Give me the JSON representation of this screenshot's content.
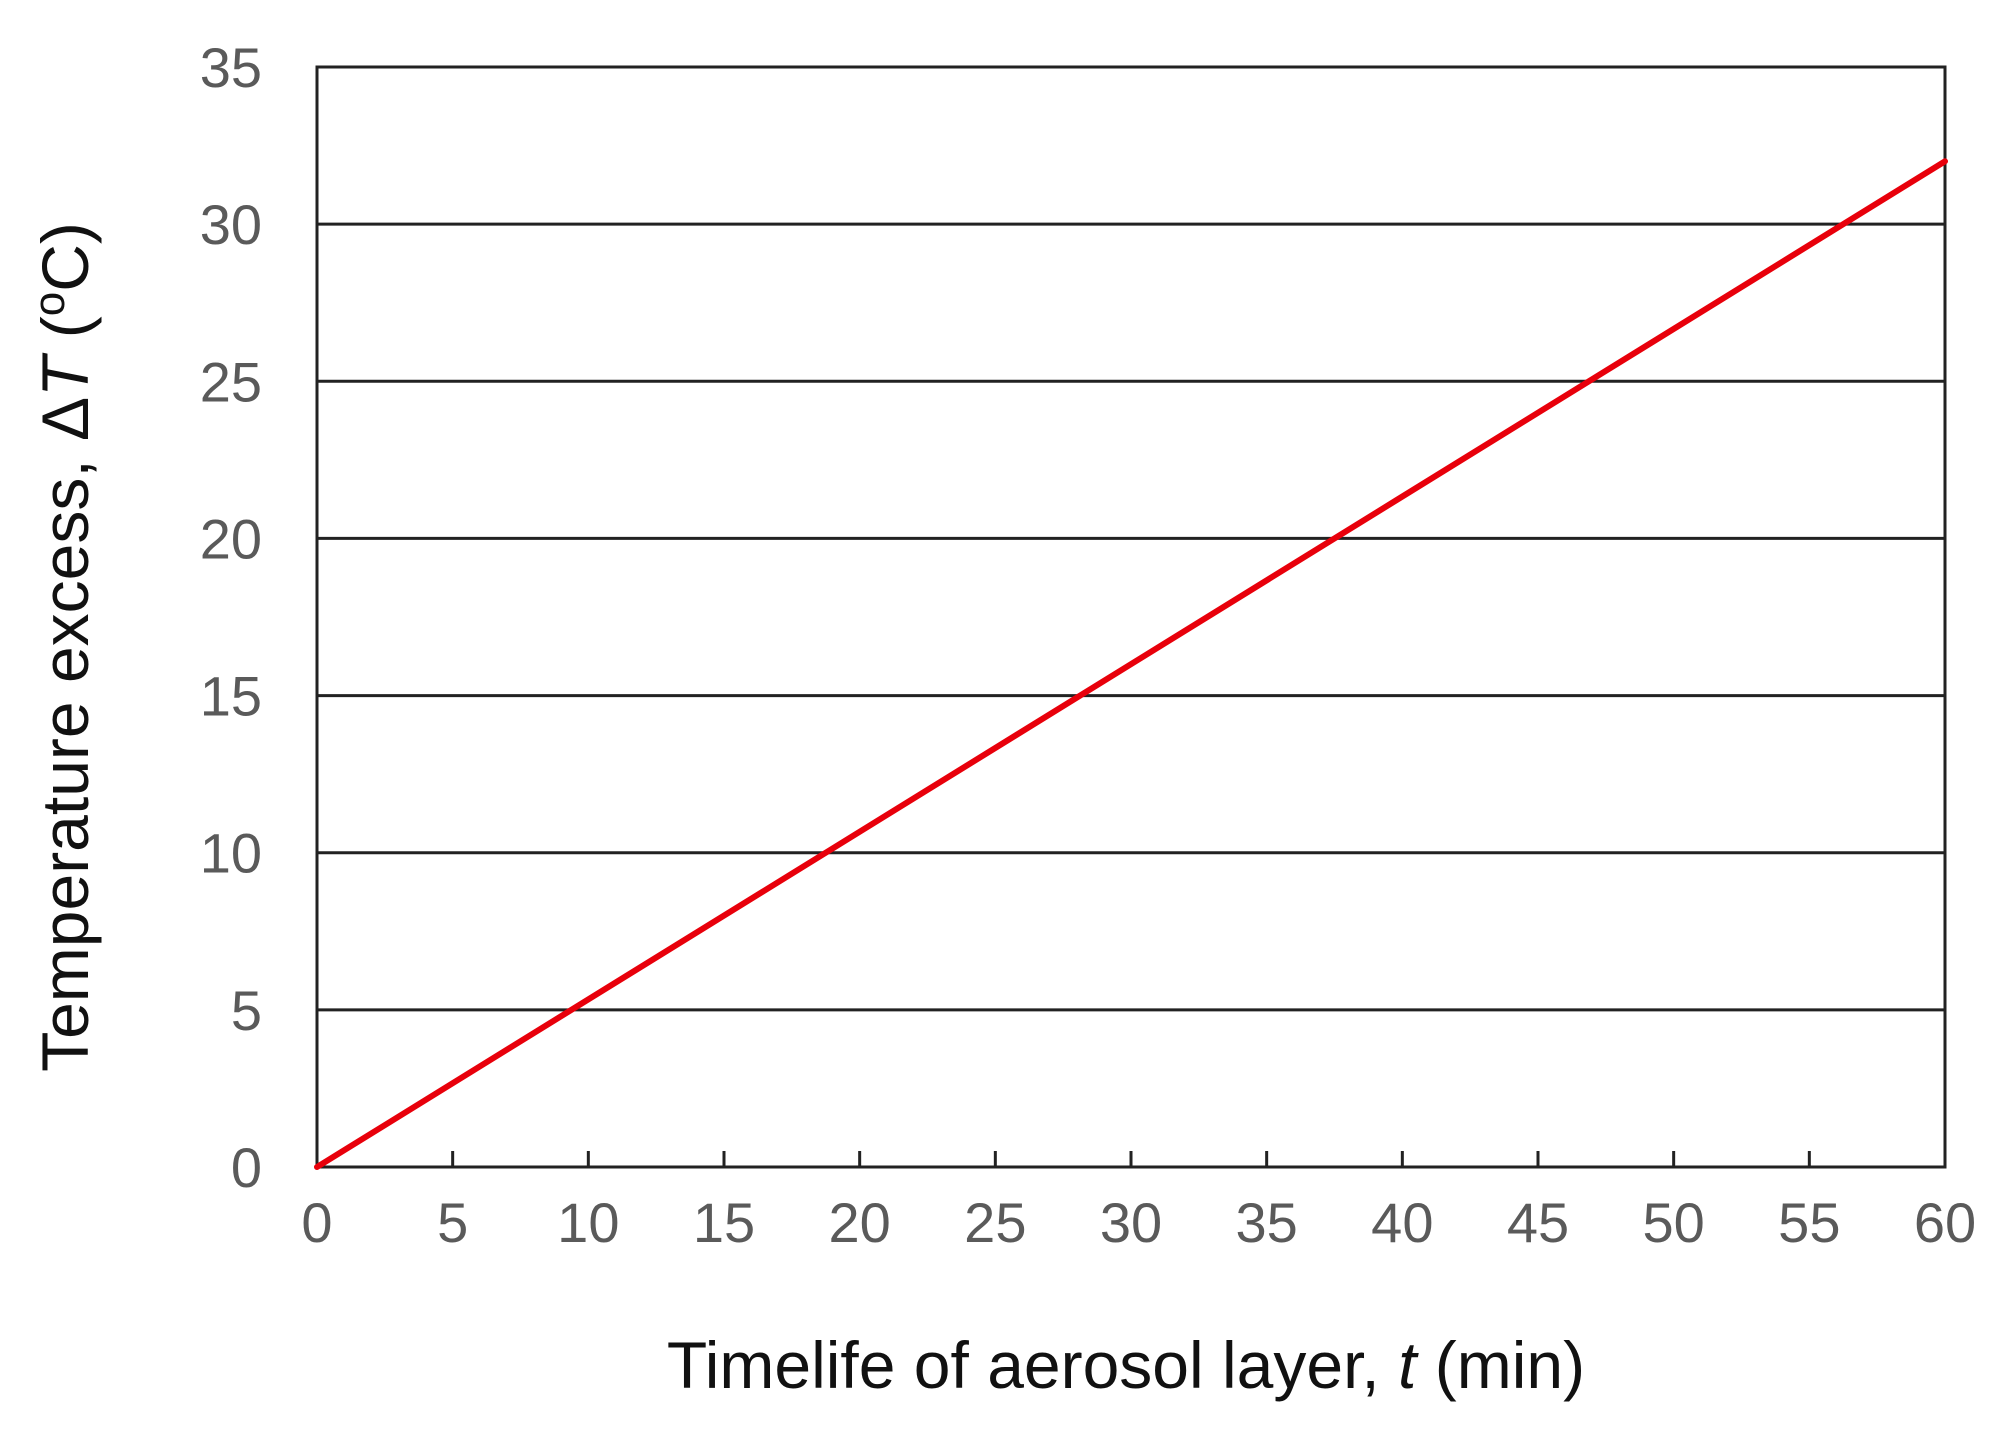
{
  "chart_data": {
    "type": "line",
    "title": "",
    "xlabel": {
      "prefix": "Timelife of aerosol layer, ",
      "symbol": "t",
      "suffix": " (min)"
    },
    "ylabel": {
      "prefix": "Temperature excess, Δ",
      "symbol": "T",
      "suffix": " (",
      "degree": "o",
      "unit": "C)"
    },
    "xlim": [
      0,
      60
    ],
    "ylim": [
      0,
      35
    ],
    "x_ticks": [
      0,
      5,
      10,
      15,
      20,
      25,
      30,
      35,
      40,
      45,
      50,
      55,
      60
    ],
    "y_ticks": [
      0,
      5,
      10,
      15,
      20,
      25,
      30,
      35
    ],
    "grid": "horizontal",
    "series": [
      {
        "x": [
          0,
          60
        ],
        "y": [
          0,
          32
        ],
        "color": "#e8000b"
      }
    ],
    "colors": {
      "line": "#e8000b",
      "grid": "#222222",
      "frame": "#222222",
      "tick_text": "#5a5a5a",
      "title_text": "#111111"
    }
  }
}
